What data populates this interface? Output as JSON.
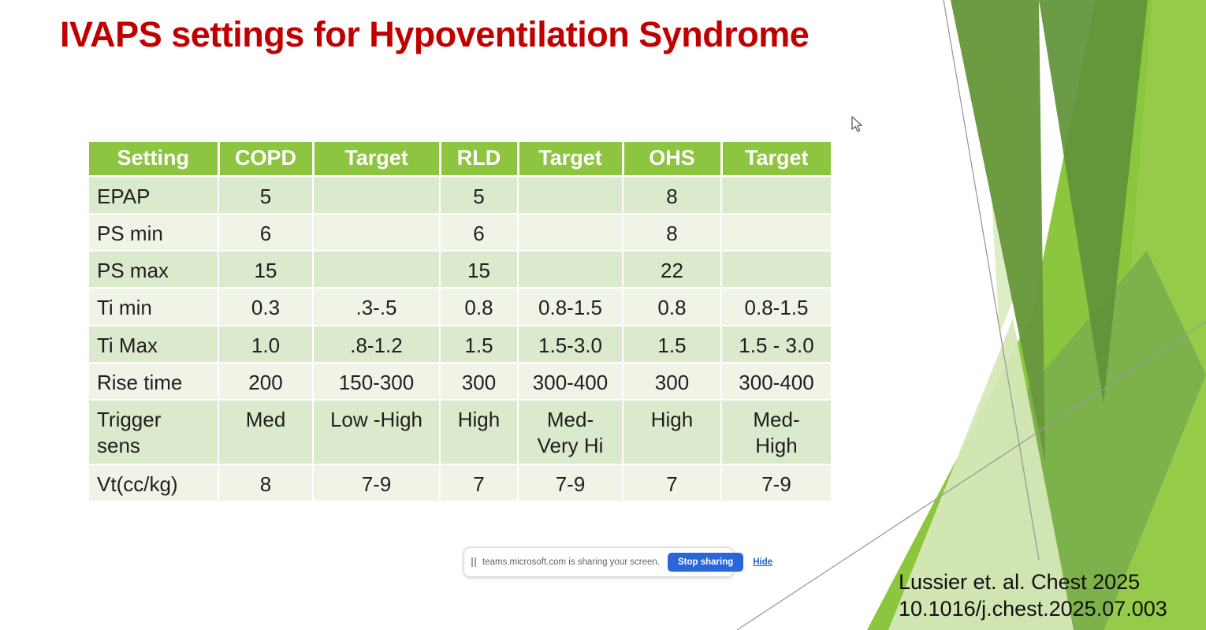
{
  "slide": {
    "title": "IVAPS settings for Hypoventilation Syndrome",
    "title_color": "#C00000",
    "citation": {
      "line1": "Lussier et. al. Chest 2025",
      "line2": "10.1016/j.chest.2025.07.003"
    }
  },
  "table": {
    "columns": [
      "Setting",
      "COPD",
      "Target",
      "RLD",
      "Target",
      "OHS",
      "Target"
    ],
    "rows": [
      [
        "EPAP",
        "5",
        "",
        "5",
        "",
        "8",
        ""
      ],
      [
        "PS min",
        "6",
        "",
        "6",
        "",
        "8",
        ""
      ],
      [
        "PS max",
        "15",
        "",
        "15",
        "",
        "22",
        ""
      ],
      [
        "Ti min",
        "0.3",
        ".3-.5",
        "0.8",
        "0.8-1.5",
        "0.8",
        "0.8-1.5"
      ],
      [
        "Ti Max",
        "1.0",
        ".8-1.2",
        "1.5",
        "1.5-3.0",
        "1.5",
        "1.5 - 3.0"
      ],
      [
        "Rise time",
        "200",
        "150-300",
        "300",
        "300-400",
        "300",
        "300-400"
      ],
      [
        "Trigger\nsens",
        "Med",
        "Low -High",
        "High",
        "Med-\nVery Hi",
        "High",
        "Med-\nHigh"
      ],
      [
        "Vt(cc/kg)",
        "8",
        "7-9",
        "7",
        "7-9",
        "7",
        "7-9"
      ]
    ]
  },
  "share_bar": {
    "message": "teams.microsoft.com is sharing your screen.",
    "stop_button_label": "Stop sharing",
    "hide_link_label": "Hide",
    "icons": {
      "drag_handle": "double-vertical-bar"
    }
  },
  "colors": {
    "title_red": "#C00000",
    "table_header_green": "#8DC440",
    "table_row_band": "#DBE9CD",
    "table_row_light": "#EFF4E7",
    "stop_button_blue": "#2B66D9",
    "hide_link_blue": "#1A5FC8",
    "deco_bright_green": "#8CC63F",
    "deco_bright_light": "#99CE4D",
    "deco_medium_green": "#7DB14C",
    "deco_pale_green": "#D5E8B6",
    "deco_dark_green_1": "#68983C",
    "deco_dark_green_2": "#609238",
    "deco_line_gray": "#9a9a9a"
  }
}
